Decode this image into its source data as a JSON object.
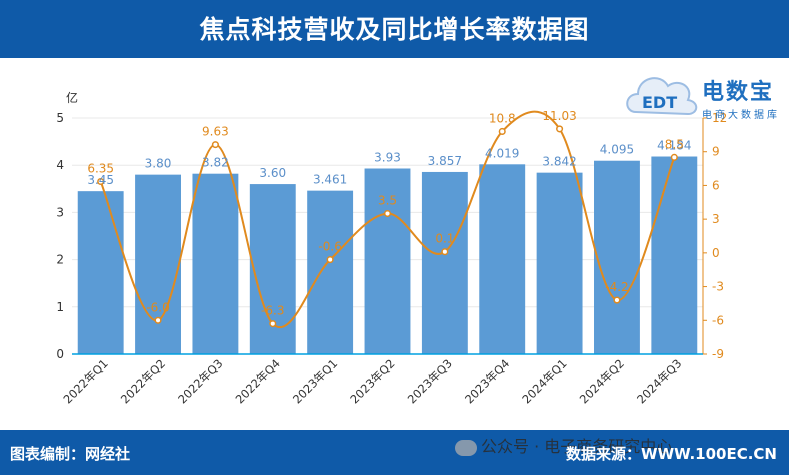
{
  "title": "焦点科技营收及同比增长率数据图",
  "footer": {
    "editor": "图表编制：网经社",
    "source": "数据来源：WWW.100EC.CN",
    "wechat": "公众号 · 电子商务研究中心"
  },
  "logo": {
    "name": "电数宝",
    "sub": "电商大数据库",
    "mark": "EDT"
  },
  "colors": {
    "header": "#0f5aa8",
    "bar": "#5b9bd5",
    "line": "#e08a1e",
    "bar_label": "#5b8fc9",
    "line_label": "#e08a1e"
  },
  "chart_data": {
    "type": "bar",
    "categories": [
      "2022年Q1",
      "2022年Q2",
      "2022年Q3",
      "2022年Q4",
      "2023年Q1",
      "2023年Q2",
      "2023年Q3",
      "2023年Q4",
      "2024年Q1",
      "2024年Q2",
      "2024年Q3"
    ],
    "y_unit": "亿",
    "ylim": [
      0,
      5
    ],
    "yticks": [
      "0",
      "1",
      "2",
      "3",
      "4",
      "5"
    ],
    "y2lim": [
      -9,
      12
    ],
    "y2ticks": [
      "-9",
      "-6",
      "-3",
      "0",
      "3",
      "6",
      "9",
      "12"
    ],
    "series": [
      {
        "type": "bar",
        "axis": "left",
        "values": [
          3.45,
          3.8,
          3.82,
          3.6,
          3.461,
          3.93,
          3.857,
          4.019,
          3.842,
          4.095,
          4.184
        ],
        "labels": [
          "3.45",
          "3.80",
          "3.82",
          "3.60",
          "3.461",
          "3.93",
          "3.857",
          "4.019",
          "3.842",
          "4.095",
          "4.184"
        ]
      },
      {
        "type": "line",
        "axis": "right",
        "smooth": true,
        "values": [
          6.35,
          -6.0,
          9.63,
          -6.3,
          -0.6,
          3.5,
          0.1,
          10.8,
          11.03,
          -4.2,
          8.5
        ],
        "labels": [
          "6.35",
          "-6.0",
          "9.63",
          "-6.3",
          "-0.6",
          "3.5",
          "0.1",
          "10.8",
          "11.03",
          "-4.2",
          "8.5"
        ]
      }
    ]
  }
}
